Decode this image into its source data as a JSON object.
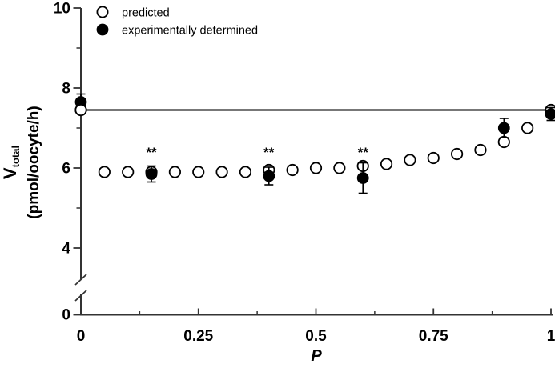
{
  "figure": {
    "background": "#ffffff"
  },
  "chart_data": {
    "type": "scatter",
    "title": "",
    "xlabel": "P",
    "ylabel": {
      "main": "V",
      "sub": "total",
      "units": "(pmol/oocyte/h)"
    },
    "x_axis": {
      "min": 0,
      "max": 1,
      "major_ticks": [
        0,
        0.25,
        0.5,
        0.75,
        1
      ],
      "major_labels": [
        "0",
        "0.25",
        "0.5",
        "0.75",
        "1"
      ],
      "minor_ticks": [
        0.125,
        0.375,
        0.625,
        0.875
      ]
    },
    "y_axis": {
      "display_min": 4,
      "max": 10,
      "major_ticks": [
        10,
        8,
        6,
        4
      ],
      "major_labels": [
        "10",
        "8",
        "6",
        "4"
      ],
      "minor_ticks": [
        9,
        7,
        5
      ],
      "axis_break": true,
      "zero_label": "0"
    },
    "reference_line_y": 7.45,
    "series": [
      {
        "name": "predicted",
        "marker": "open-circle",
        "x": [
          0,
          0.05,
          0.1,
          0.15,
          0.2,
          0.25,
          0.3,
          0.35,
          0.4,
          0.45,
          0.5,
          0.55,
          0.6,
          0.65,
          0.7,
          0.75,
          0.8,
          0.85,
          0.9,
          0.95,
          1.0
        ],
        "y": [
          7.45,
          5.9,
          5.9,
          5.9,
          5.9,
          5.9,
          5.9,
          5.9,
          5.95,
          5.95,
          6.0,
          6.0,
          6.05,
          6.1,
          6.2,
          6.25,
          6.35,
          6.45,
          6.65,
          7.0,
          7.45
        ]
      },
      {
        "name": "experimentally determined",
        "marker": "filled-circle",
        "x": [
          0,
          0.15,
          0.4,
          0.6,
          0.9,
          1.0
        ],
        "y": [
          7.65,
          5.85,
          5.8,
          5.75,
          7.0,
          7.35
        ],
        "yerr": [
          0.2,
          0.2,
          0.22,
          0.38,
          0.24,
          0.16
        ]
      }
    ],
    "annotations": [
      {
        "text": "**",
        "x": 0.15,
        "y": 6.28
      },
      {
        "text": "**",
        "x": 0.4,
        "y": 6.28
      },
      {
        "text": "**",
        "x": 0.6,
        "y": 6.28
      }
    ],
    "legend": {
      "position": "top-left",
      "entries": [
        {
          "label": "predicted",
          "marker": "open-circle"
        },
        {
          "label": "experimentally determined",
          "marker": "filled-circle"
        }
      ]
    }
  },
  "colors": {
    "axis": "#333333",
    "text": "#000000",
    "reference_line": "#4a4a4a",
    "marker_stroke": "#000000",
    "marker_fill_open": "#ffffff",
    "marker_fill_solid": "#000000"
  }
}
